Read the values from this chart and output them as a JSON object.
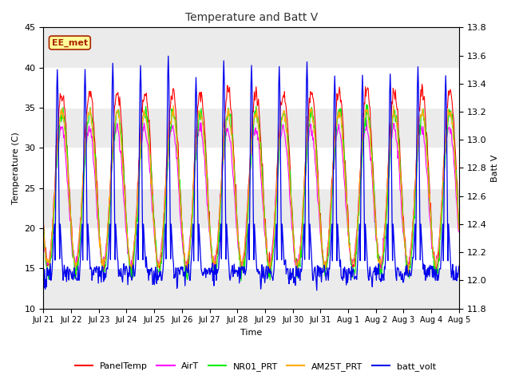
{
  "title": "Temperature and Batt V",
  "ylabel_left": "Temperature (C)",
  "ylabel_right": "Batt V",
  "xlabel": "Time",
  "annotation": "EE_met",
  "ylim_left": [
    10,
    45
  ],
  "ylim_right": [
    11.8,
    13.8
  ],
  "xtick_labels": [
    "Jul 21",
    "Jul 22",
    "Jul 23",
    "Jul 24",
    "Jul 25",
    "Jul 26",
    "Jul 27",
    "Jul 28",
    "Jul 29",
    "Jul 30",
    "Jul 31",
    "Aug 1",
    "Aug 2",
    "Aug 3",
    "Aug 4",
    "Aug 5"
  ],
  "ytick_left": [
    10,
    15,
    20,
    25,
    30,
    35,
    40,
    45
  ],
  "ytick_right": [
    11.8,
    12.0,
    12.2,
    12.4,
    12.6,
    12.8,
    13.0,
    13.2,
    13.4,
    13.6,
    13.8
  ],
  "colors": {
    "PanelTemp": "#ff0000",
    "AirT": "#ff00ff",
    "NR01_PRT": "#00ee00",
    "AM25T_PRT": "#ffaa00",
    "batt_volt": "#0000ee"
  },
  "bg_color": "#ffffff",
  "plot_bg": "#ffffff",
  "band_color": "#e0e0e0",
  "annotation_bg": "#ffff99",
  "annotation_border": "#aa2200",
  "annotation_text_color": "#aa2200",
  "grid_color": "#d0d0d0"
}
